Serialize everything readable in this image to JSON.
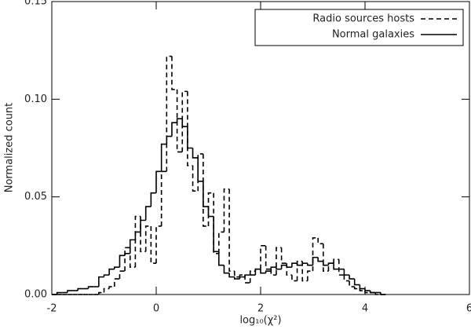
{
  "chart_data": {
    "type": "histogram",
    "xlabel": "log₁₀(χ²)",
    "ylabel": "Normalized count",
    "bins": [
      -2.0,
      -1.9,
      -1.8,
      -1.7,
      -1.6,
      -1.5,
      -1.4,
      -1.3,
      -1.2,
      -1.1,
      -1.0,
      -0.9,
      -0.8,
      -0.7,
      -0.6,
      -0.5,
      -0.4,
      -0.3,
      -0.2,
      -0.1,
      0.0,
      0.1,
      0.2,
      0.3,
      0.4,
      0.5,
      0.6,
      0.7,
      0.8,
      0.9,
      1.0,
      1.1,
      1.2,
      1.3,
      1.4,
      1.5,
      1.6,
      1.7,
      1.8,
      1.9,
      2.0,
      2.1,
      2.2,
      2.3,
      2.4,
      2.5,
      2.6,
      2.7,
      2.8,
      2.9,
      3.0,
      3.1,
      3.2,
      3.3,
      3.4,
      3.5,
      3.6,
      3.7,
      3.8,
      3.9,
      4.0,
      4.1,
      4.2,
      4.3,
      4.4
    ],
    "series": [
      {
        "name": "Radio sources hosts",
        "color": "#000000",
        "linestyle": "dashed",
        "values": [
          0,
          0,
          0,
          0,
          0,
          0,
          0,
          0,
          0,
          0.001,
          0.003,
          0.004,
          0.008,
          0.012,
          0.024,
          0.014,
          0.04,
          0.022,
          0.035,
          0.016,
          0.035,
          0.063,
          0.122,
          0.105,
          0.073,
          0.104,
          0.066,
          0.053,
          0.072,
          0.035,
          0.052,
          0.021,
          0.032,
          0.054,
          0.012,
          0.009,
          0.01,
          0.006,
          0.012,
          0.013,
          0.025,
          0.013,
          0.01,
          0.024,
          0.016,
          0.01,
          0.007,
          0.017,
          0.007,
          0.012,
          0.029,
          0.026,
          0.012,
          0.016,
          0.018,
          0.01,
          0.007,
          0.004,
          0.003,
          0.002,
          0.001,
          0.001,
          0,
          0
        ]
      },
      {
        "name": "Normal galaxies",
        "color": "#000000",
        "linestyle": "solid",
        "values": [
          0,
          0.001,
          0.001,
          0.002,
          0.002,
          0.003,
          0.003,
          0.004,
          0.004,
          0.009,
          0.01,
          0.013,
          0.014,
          0.02,
          0.021,
          0.028,
          0.032,
          0.038,
          0.045,
          0.052,
          0.063,
          0.077,
          0.081,
          0.088,
          0.09,
          0.086,
          0.075,
          0.07,
          0.058,
          0.045,
          0.04,
          0.022,
          0.015,
          0.011,
          0.009,
          0.008,
          0.009,
          0.01,
          0.01,
          0.013,
          0.011,
          0.012,
          0.014,
          0.013,
          0.015,
          0.014,
          0.016,
          0.015,
          0.016,
          0.015,
          0.019,
          0.017,
          0.015,
          0.016,
          0.013,
          0.013,
          0.01,
          0.008,
          0.005,
          0.003,
          0.002,
          0.001,
          0.001,
          0
        ]
      }
    ],
    "xlim": [
      -2,
      6
    ],
    "ylim": [
      0,
      0.15
    ],
    "xticks": [
      -2,
      0,
      2,
      4,
      6
    ],
    "yticks": [
      {
        "value": 0,
        "label": "0.00"
      },
      {
        "value": 0.05,
        "label": "0.05"
      },
      {
        "value": 0.1,
        "label": "0.10"
      },
      {
        "value": 0.15,
        "label": "0.15"
      }
    ],
    "legend": "upper right"
  }
}
